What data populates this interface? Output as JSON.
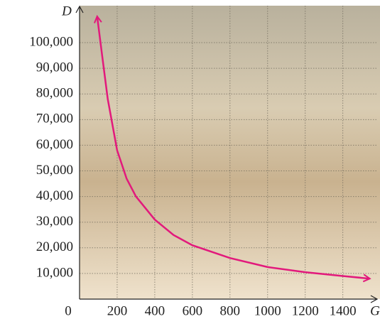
{
  "chart_data": {
    "type": "line",
    "x_label": "G",
    "y_label": "D",
    "x": [
      94,
      120,
      150,
      200,
      250,
      300,
      400,
      500,
      600,
      800,
      1000,
      1200,
      1400,
      1540
    ],
    "series": [
      {
        "color": "#e2197c",
        "values": [
          110000,
          95000,
          78000,
          58000,
          47000,
          40000,
          31000,
          25000,
          21000,
          16000,
          12500,
          10500,
          9000,
          8000
        ]
      }
    ],
    "xlim": [
      0,
      1560
    ],
    "ylim": [
      0,
      112000
    ],
    "xticks": [
      0,
      200,
      400,
      600,
      800,
      1000,
      1200,
      1400
    ],
    "yticks": [
      {
        "value": 10000,
        "label": "10,000"
      },
      {
        "value": 20000,
        "label": "20,000"
      },
      {
        "value": 30000,
        "label": "30,000"
      },
      {
        "value": 40000,
        "label": "40,000"
      },
      {
        "value": 50000,
        "label": "50,000"
      },
      {
        "value": 60000,
        "label": "60,000"
      },
      {
        "value": 70000,
        "label": "70,000"
      },
      {
        "value": 80000,
        "label": "80,000"
      },
      {
        "value": 90000,
        "label": "90,000"
      },
      {
        "value": 100000,
        "label": "100,000"
      }
    ],
    "grid": true
  }
}
